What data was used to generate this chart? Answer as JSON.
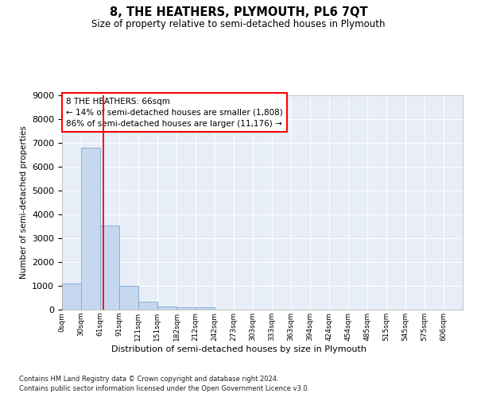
{
  "title": "8, THE HEATHERS, PLYMOUTH, PL6 7QT",
  "subtitle": "Size of property relative to semi-detached houses in Plymouth",
  "xlabel": "Distribution of semi-detached houses by size in Plymouth",
  "ylabel": "Number of semi-detached properties",
  "bar_labels": [
    "0sqm",
    "30sqm",
    "61sqm",
    "91sqm",
    "121sqm",
    "151sqm",
    "182sqm",
    "212sqm",
    "242sqm",
    "273sqm",
    "303sqm",
    "333sqm",
    "363sqm",
    "394sqm",
    "424sqm",
    "454sqm",
    "485sqm",
    "515sqm",
    "545sqm",
    "575sqm",
    "606sqm"
  ],
  "bar_values": [
    1100,
    6800,
    3550,
    1000,
    340,
    150,
    110,
    85,
    0,
    0,
    0,
    0,
    0,
    0,
    0,
    0,
    0,
    0,
    0,
    0,
    0
  ],
  "bar_color": "#c5d8f0",
  "bar_edge_color": "#7aaad0",
  "property_line_x": 66,
  "annotation_text": "8 THE HEATHERS: 66sqm\n← 14% of semi-detached houses are smaller (1,808)\n86% of semi-detached houses are larger (11,176) →",
  "ylim": [
    0,
    9000
  ],
  "yticks": [
    0,
    1000,
    2000,
    3000,
    4000,
    5000,
    6000,
    7000,
    8000,
    9000
  ],
  "background_color": "#e8eef8",
  "grid_color": "#ffffff",
  "footer_line1": "Contains HM Land Registry data © Crown copyright and database right 2024.",
  "footer_line2": "Contains public sector information licensed under the Open Government Licence v3.0.",
  "bin_edges": [
    0,
    30,
    61,
    91,
    121,
    151,
    182,
    212,
    242,
    273,
    303,
    333,
    363,
    394,
    424,
    454,
    485,
    515,
    545,
    575,
    606,
    636
  ]
}
